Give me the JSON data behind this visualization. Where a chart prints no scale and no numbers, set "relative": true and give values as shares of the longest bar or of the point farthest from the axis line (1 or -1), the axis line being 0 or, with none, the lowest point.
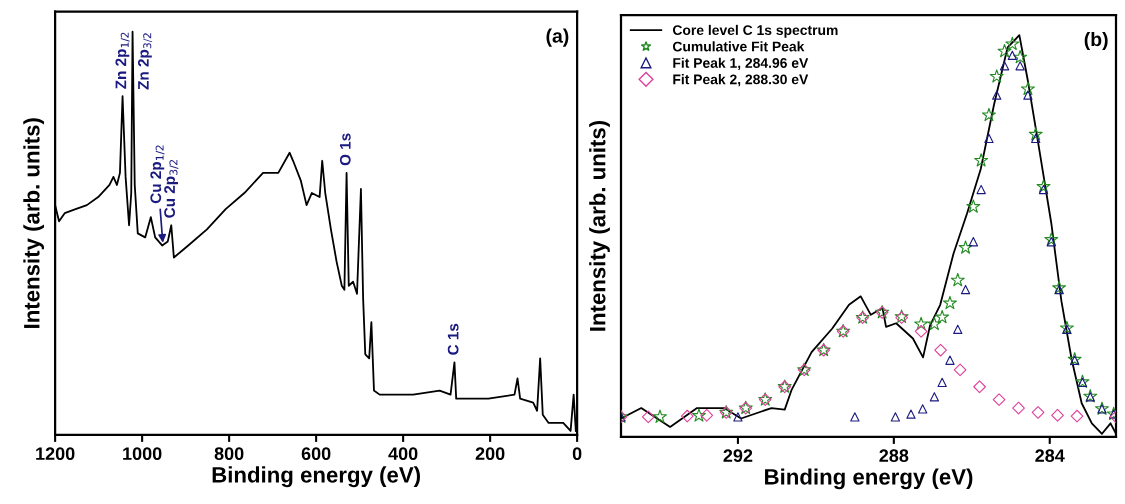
{
  "chart_data": [
    {
      "type": "line",
      "relative": true,
      "xlabel": "Binding energy (eV)",
      "ylabel": "Intensity (arb. units)",
      "xlim": [
        1200,
        0
      ],
      "xticks": [
        1200,
        1000,
        800,
        600,
        400,
        200,
        0
      ],
      "grid": false,
      "legend": false,
      "series": [
        {
          "color": "#000000",
          "x": [
            1200,
            1191,
            1178,
            1153,
            1127,
            1101,
            1075,
            1066,
            1058,
            1051,
            1045,
            1038,
            1030,
            1025,
            1022,
            1017,
            1010,
            993,
            980,
            970,
            954,
            941,
            933,
            927,
            894,
            851,
            808,
            765,
            722,
            687,
            661,
            653,
            635,
            622,
            610,
            592,
            586,
            579,
            566,
            553,
            541,
            535,
            530,
            525,
            515,
            506,
            497,
            492,
            487,
            478,
            473,
            467,
            454,
            377,
            316,
            291,
            282,
            278,
            204,
            144,
            137,
            131,
            101,
            92,
            85,
            79,
            66,
            32,
            15,
            8,
            3
          ],
          "values": [
            0.57,
            0.53,
            0.55,
            0.56,
            0.57,
            0.59,
            0.62,
            0.64,
            0.62,
            0.65,
            0.84,
            0.64,
            0.52,
            0.6,
            1.0,
            0.62,
            0.5,
            0.49,
            0.54,
            0.49,
            0.47,
            0.48,
            0.52,
            0.44,
            0.47,
            0.51,
            0.56,
            0.6,
            0.65,
            0.65,
            0.7,
            0.68,
            0.63,
            0.57,
            0.6,
            0.59,
            0.68,
            0.6,
            0.51,
            0.43,
            0.37,
            0.36,
            0.65,
            0.37,
            0.38,
            0.35,
            0.61,
            0.34,
            0.2,
            0.19,
            0.28,
            0.11,
            0.1,
            0.1,
            0.11,
            0.1,
            0.18,
            0.09,
            0.09,
            0.1,
            0.14,
            0.09,
            0.08,
            0.06,
            0.19,
            0.05,
            0.03,
            0.03,
            0.01,
            0.1,
            0.01
          ]
        }
      ],
      "annotations": [
        "(a)",
        {
          "text": "Zn 2p$_{1/2}$",
          "x": 1045,
          "y": 0.84
        },
        {
          "text": "Zn 2p$_{3/2}$",
          "x": 1022,
          "y": 1.0
        },
        {
          "text": "Cu 2p$_{1/2}$",
          "x": 952,
          "y": 0.47
        },
        {
          "text": "Cu 2p$_{3/2}$",
          "x": 933,
          "y": 0.52
        },
        {
          "text": "O 1s",
          "x": 530,
          "y": 0.65
        },
        {
          "text": "C 1s",
          "x": 282,
          "y": 0.18
        }
      ]
    },
    {
      "type": "line",
      "relative": true,
      "xlabel": "Binding energy (eV)",
      "ylabel": "Intensity (arb. units)",
      "xlim": [
        295,
        282.3
      ],
      "xticks": [
        292,
        288,
        284
      ],
      "grid": false,
      "legend": "top left",
      "series": [
        {
          "name": "Core level C 1s spectrum",
          "type": "line",
          "color": "#000000",
          "x": [
            295.0,
            294.48,
            293.74,
            293.05,
            292.35,
            291.92,
            291.14,
            290.8,
            290.62,
            290.11,
            289.58,
            289.15,
            288.85,
            288.59,
            288.29,
            288.2,
            287.94,
            287.51,
            287.25,
            287.07,
            286.81,
            286.47,
            286.12,
            285.77,
            285.43,
            285.08,
            284.78,
            284.56,
            284.3,
            283.96,
            283.7,
            283.44,
            283.18,
            282.92,
            282.66,
            282.44,
            282.3
          ],
          "values": [
            0.046,
            0.072,
            0.025,
            0.072,
            0.072,
            0.046,
            0.072,
            0.068,
            0.118,
            0.211,
            0.27,
            0.329,
            0.35,
            0.304,
            0.321,
            0.274,
            0.283,
            0.245,
            0.198,
            0.278,
            0.329,
            0.456,
            0.557,
            0.667,
            0.827,
            0.97,
            1.0,
            0.886,
            0.734,
            0.532,
            0.338,
            0.194,
            0.084,
            0.034,
            0.008,
            0.034,
            0.008
          ]
        },
        {
          "name": "Cumulative Fit Peak",
          "type": "scatter",
          "marker": "star",
          "color": "#228b22",
          "x": [
            295,
            294,
            293,
            292.3,
            291.8,
            291.3,
            290.8,
            290.3,
            289.8,
            289.3,
            288.8,
            288.3,
            287.8,
            287.3,
            286.96,
            286.76,
            286.56,
            286.36,
            286.16,
            285.96,
            285.76,
            285.56,
            285.36,
            285.16,
            284.96,
            284.76,
            284.56,
            284.36,
            284.16,
            283.96,
            283.76,
            283.56,
            283.36,
            283.16,
            282.96,
            282.66,
            282.36
          ],
          "values": [
            0.05,
            0.05,
            0.053,
            0.061,
            0.072,
            0.093,
            0.125,
            0.167,
            0.216,
            0.263,
            0.297,
            0.31,
            0.299,
            0.281,
            0.281,
            0.298,
            0.333,
            0.39,
            0.471,
            0.573,
            0.688,
            0.801,
            0.897,
            0.96,
            0.978,
            0.945,
            0.866,
            0.753,
            0.623,
            0.491,
            0.371,
            0.271,
            0.193,
            0.137,
            0.101,
            0.07,
            0.057
          ]
        },
        {
          "name": "Fit Peak 1, 284.96 eV",
          "type": "scatter",
          "marker": "triangle",
          "color": "#1a1a80",
          "x": [
            295,
            292,
            289,
            287.96,
            287.56,
            287.26,
            286.96,
            286.76,
            286.56,
            286.36,
            286.16,
            285.96,
            285.76,
            285.56,
            285.36,
            285.16,
            284.96,
            284.76,
            284.56,
            284.36,
            284.16,
            283.96,
            283.76,
            283.56,
            283.36,
            283.16,
            282.96,
            282.66,
            282.36
          ],
          "values": [
            0.05,
            0.05,
            0.05,
            0.05,
            0.057,
            0.07,
            0.1,
            0.136,
            0.191,
            0.268,
            0.367,
            0.486,
            0.616,
            0.743,
            0.851,
            0.924,
            0.95,
            0.924,
            0.851,
            0.743,
            0.616,
            0.486,
            0.367,
            0.268,
            0.191,
            0.136,
            0.1,
            0.07,
            0.057
          ]
        },
        {
          "name": "Fit Peak 2, 288.30 eV",
          "type": "scatter",
          "marker": "diamond",
          "color": "#e0409a",
          "x": [
            295,
            294.3,
            293.3,
            292.8,
            292.3,
            291.8,
            291.3,
            290.8,
            290.3,
            289.8,
            289.3,
            288.8,
            288.3,
            287.8,
            287.3,
            286.8,
            286.3,
            285.8,
            285.3,
            284.8,
            284.3,
            283.8,
            283.3,
            282.3
          ],
          "values": [
            0.05,
            0.05,
            0.052,
            0.054,
            0.061,
            0.072,
            0.093,
            0.125,
            0.167,
            0.216,
            0.263,
            0.297,
            0.31,
            0.297,
            0.263,
            0.216,
            0.167,
            0.125,
            0.093,
            0.072,
            0.061,
            0.054,
            0.052,
            0.05
          ]
        }
      ],
      "annotations": [
        "(b)"
      ]
    }
  ]
}
